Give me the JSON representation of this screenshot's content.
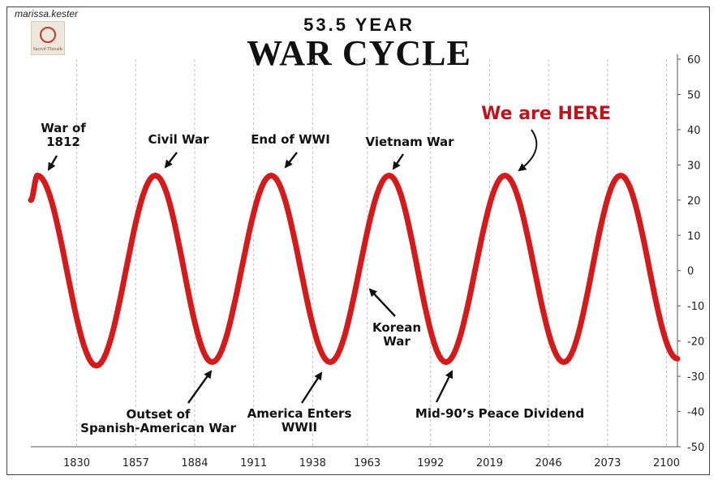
{
  "watermark": "marissa.kester",
  "logo": {
    "brand": "Sacred Threads"
  },
  "subtitle": "53.5 YEAR",
  "title": "WAR CYCLE",
  "colors": {
    "curve": "#d41a1a",
    "highlight": "#c0121b",
    "text": "#111111"
  },
  "chart_data": {
    "type": "line",
    "title": "WAR CYCLE",
    "subtitle": "53.5 YEAR",
    "x_ticks": [
      1830,
      1857,
      1884,
      1911,
      1938,
      1963,
      1992,
      2019,
      2046,
      2073,
      2100
    ],
    "y_ticks": [
      60,
      50,
      40,
      30,
      20,
      10,
      0,
      -10,
      -20,
      -30,
      -40,
      -50
    ],
    "ylim": [
      -50,
      60
    ],
    "xlim": [
      1809,
      2105
    ],
    "grid": "vertical dashed",
    "series": [
      {
        "x": [
          1809,
          1812,
          1839,
          1866,
          1892,
          1919,
          1946,
          1973,
          1999,
          2026,
          2053,
          2079,
          2105
        ],
        "y": [
          20,
          27,
          -27,
          27,
          -26,
          27,
          -26,
          27,
          -26,
          27,
          -26,
          27,
          -25
        ]
      }
    ],
    "annotations": [
      {
        "lines": [
          "War of",
          "1812"
        ],
        "target": [
          1812,
          27
        ]
      },
      {
        "lines": [
          "Civil War"
        ],
        "target": [
          1866,
          27
        ]
      },
      {
        "lines": [
          "End of WWI"
        ],
        "target": [
          1919,
          27
        ]
      },
      {
        "lines": [
          "Vietnam War"
        ],
        "target": [
          1973,
          27
        ]
      },
      {
        "lines": [
          "We are HERE"
        ],
        "target": [
          2026,
          27
        ],
        "highlight": true
      },
      {
        "lines": [
          "Outset of",
          "Spanish-American War"
        ],
        "target": [
          1892,
          -26
        ]
      },
      {
        "lines": [
          "America Enters",
          "WWII"
        ],
        "target": [
          1946,
          -26
        ]
      },
      {
        "lines": [
          "Korean",
          "War"
        ],
        "target": [
          1962,
          0
        ]
      },
      {
        "lines": [
          "Mid-90’s Peace Dividend"
        ],
        "target": [
          1999,
          -26
        ]
      }
    ]
  }
}
